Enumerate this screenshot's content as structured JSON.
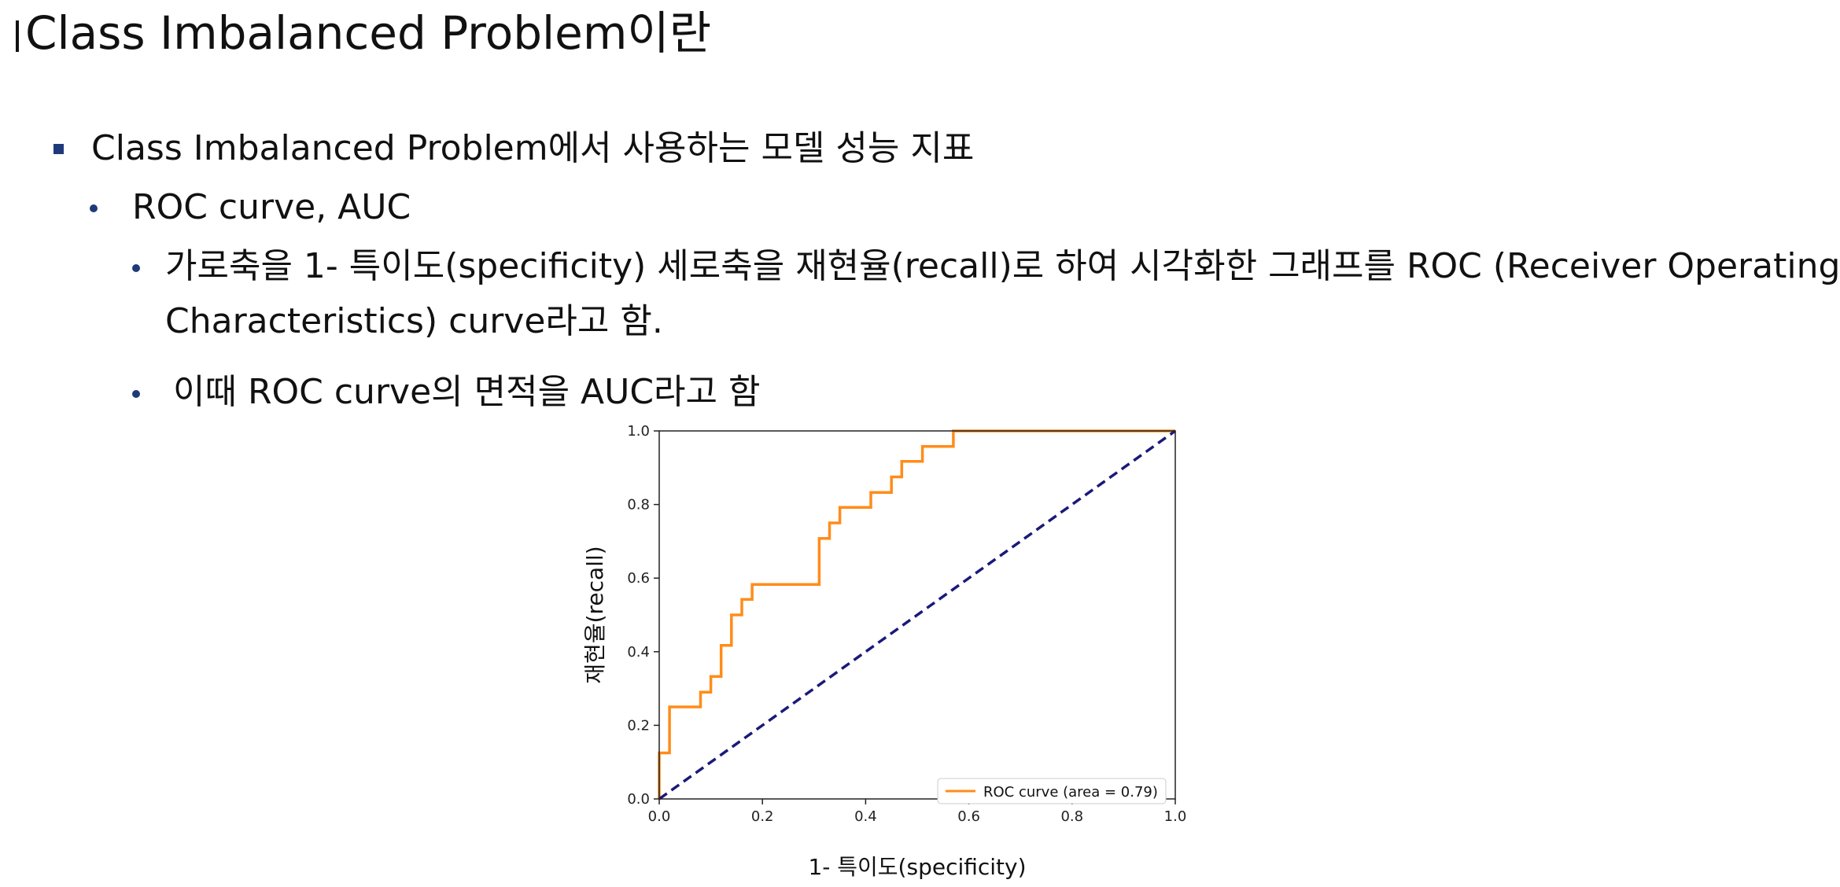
{
  "slide": {
    "title": "Class Imbalanced Problem이란",
    "bullet1": "Class Imbalanced Problem에서 사용하는 모델 성능 지표",
    "bullet2": "ROC curve, AUC",
    "bullet3_line1": "가로축을 1- 특이도(specificity) 세로축을 재현율(recall)로 하여 시각화한 그래프를 ROC (Receiver Operating",
    "bullet3_line2": "Characteristics)  curve라고 함.",
    "bullet4": "이때 ROC curve의 면적을 AUC라고 함"
  },
  "colors": {
    "bullet": "#1f3a7a",
    "roc": "#ff8c1a",
    "diagonal": "#1a1a7a"
  },
  "chart_data": {
    "type": "line",
    "xlabel": "1- 특이도(specificity)",
    "ylabel": "재현율(recall)",
    "xlim": [
      0,
      1
    ],
    "ylim": [
      0,
      1
    ],
    "x_ticks": [
      "0.0",
      "0.2",
      "0.4",
      "0.6",
      "0.8",
      "1.0"
    ],
    "y_ticks": [
      "0.0",
      "0.2",
      "0.4",
      "0.6",
      "0.8",
      "1.0"
    ],
    "grid": false,
    "legend_position": "lower-right",
    "series": [
      {
        "name": "ROC curve (area = 0.79)",
        "style": "solid",
        "x": [
          0,
          0,
          0.02,
          0.02,
          0.08,
          0.08,
          0.1,
          0.1,
          0.12,
          0.12,
          0.14,
          0.14,
          0.16,
          0.16,
          0.18,
          0.18,
          0.31,
          0.31,
          0.33,
          0.33,
          0.35,
          0.35,
          0.41,
          0.41,
          0.45,
          0.45,
          0.47,
          0.47,
          0.51,
          0.51,
          0.57,
          0.57,
          1.0
        ],
        "y": [
          0,
          0.125,
          0.125,
          0.25,
          0.25,
          0.29,
          0.29,
          0.333,
          0.333,
          0.417,
          0.417,
          0.5,
          0.5,
          0.542,
          0.542,
          0.583,
          0.583,
          0.708,
          0.708,
          0.75,
          0.75,
          0.792,
          0.792,
          0.833,
          0.833,
          0.875,
          0.875,
          0.917,
          0.917,
          0.958,
          0.958,
          1.0,
          1.0
        ]
      },
      {
        "name": "",
        "style": "dashed",
        "x": [
          0,
          1
        ],
        "y": [
          0,
          1
        ]
      }
    ]
  }
}
